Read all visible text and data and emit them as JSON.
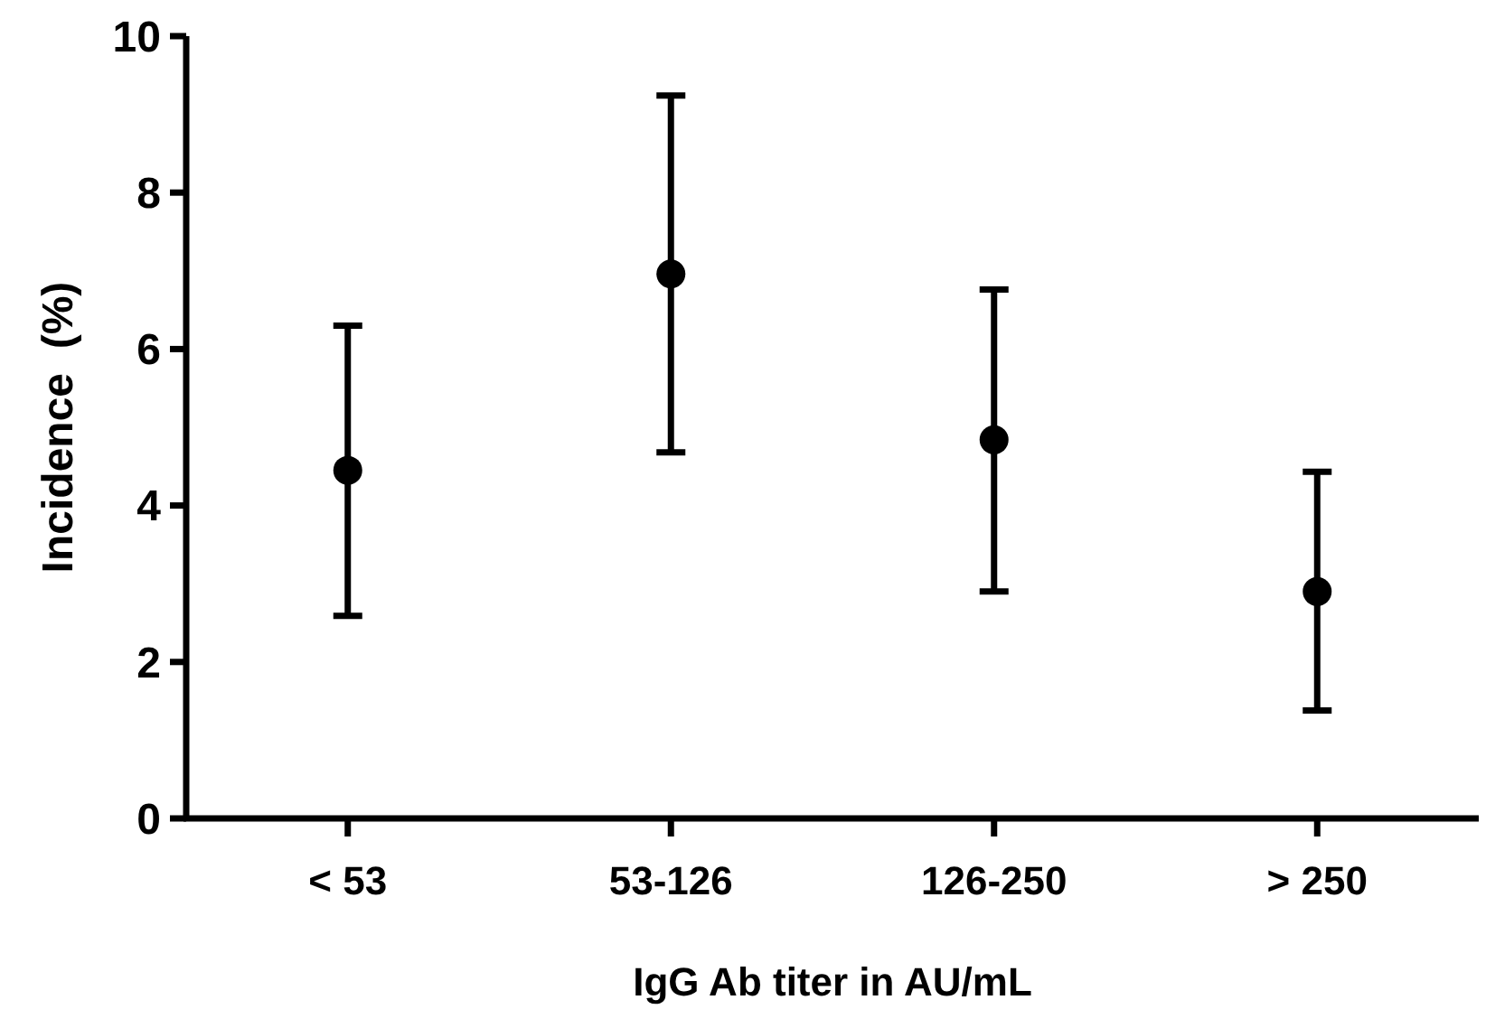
{
  "chart_data": {
    "type": "scatter",
    "xlabel": "IgG Ab titer in AU/mL",
    "ylabel": "Incidence  (%)",
    "categories": [
      "< 53",
      "53-126",
      "126-250",
      "> 250"
    ],
    "values": [
      4.45,
      6.96,
      4.84,
      2.9
    ],
    "errors": [
      [
        2.59,
        6.3
      ],
      [
        4.68,
        9.24
      ],
      [
        2.9,
        6.76
      ],
      [
        1.38,
        4.43
      ]
    ],
    "color": "#000000",
    "marker": "circle",
    "ylim": [
      0,
      10
    ],
    "yticks": [
      0,
      2,
      4,
      6,
      8,
      10
    ],
    "grid": false
  }
}
